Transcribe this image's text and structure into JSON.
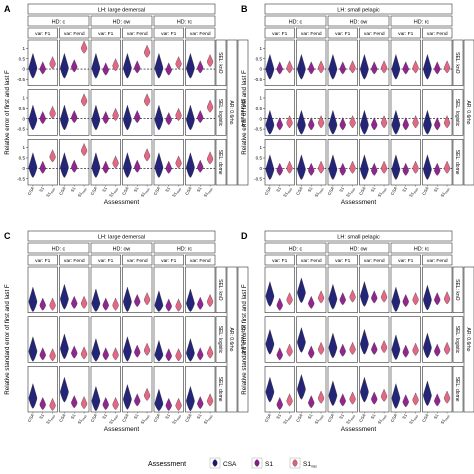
{
  "figure": {
    "legend": {
      "title": "Assessment",
      "items": [
        {
          "label": "CSA",
          "color": "#191970"
        },
        {
          "label": "S1",
          "sub": "",
          "color": "#8B1A89"
        },
        {
          "label": "S1",
          "sub": "mss",
          "color": "#E0607E"
        }
      ]
    },
    "assessment_ticks": [
      {
        "label": "CSA",
        "sub": ""
      },
      {
        "label": "S1",
        "sub": ""
      },
      {
        "label": "S1",
        "sub": "mss"
      }
    ]
  },
  "chart_data": [
    {
      "panel_letter": "A",
      "type": "violin",
      "lh_label": "LH: large demersal",
      "hd_labels": [
        "HD: c",
        "HD: ow",
        "HD: rc"
      ],
      "var_labels": [
        "var: F1",
        "var: Fend"
      ],
      "sel_labels": [
        "SEL: knO",
        "SEL: logistic",
        "SEL: dome"
      ],
      "sr_label": "SR: recruit-4",
      "ar_label": "AR: 0.6rho",
      "ylabel": "Relative error of first and last F",
      "xlabel": "Assessment",
      "ylim": [
        -0.8,
        1.4
      ],
      "yticks": [
        "-0.5",
        "0",
        "0.5",
        "1"
      ],
      "ytick_values": [
        -0.5,
        0,
        0.5,
        1
      ],
      "ref_line": 0,
      "values": [
        [
          [
            0.05,
            0.0,
            0.25
          ],
          [
            0.05,
            0.1,
            1.0
          ],
          [
            0.05,
            -0.05,
            0.15
          ],
          [
            0.05,
            0.05,
            0.8
          ],
          [
            0.05,
            -0.05,
            0.25
          ],
          [
            0.05,
            0.05,
            0.35
          ]
        ],
        [
          [
            -0.05,
            0.0,
            0.25
          ],
          [
            -0.05,
            0.05,
            0.85
          ],
          [
            -0.05,
            0.0,
            0.15
          ],
          [
            -0.05,
            0.05,
            0.85
          ],
          [
            -0.05,
            -0.05,
            0.15
          ],
          [
            -0.05,
            0.05,
            0.55
          ]
        ],
        [
          [
            0.05,
            0.0,
            0.55
          ],
          [
            0.05,
            0.05,
            0.85
          ],
          [
            0.05,
            0.0,
            0.25
          ],
          [
            0.05,
            0.05,
            0.6
          ],
          [
            0.05,
            0.0,
            0.25
          ],
          [
            0.05,
            0.05,
            0.45
          ]
        ]
      ]
    },
    {
      "panel_letter": "B",
      "type": "violin",
      "lh_label": "LH: small pelagic",
      "hd_labels": [
        "HD: c",
        "HD: ow",
        "HD: rc"
      ],
      "var_labels": [
        "var: F1",
        "var: Fend"
      ],
      "sel_labels": [
        "SEL: knO",
        "SEL: logistic",
        "SEL: dome"
      ],
      "sr_label": "SR: recruit-4",
      "ar_label": "AR: 0.6rho",
      "ylabel": "Relative error of first and last F",
      "xlabel": "Assessment",
      "ylim": [
        -0.8,
        1.4
      ],
      "yticks": [
        "-0.5",
        "0",
        "0.5",
        "1"
      ],
      "ytick_values": [
        -0.5,
        0,
        0.5,
        1
      ],
      "ref_line": 0,
      "values": [
        [
          [
            0.0,
            0.0,
            0.05
          ],
          [
            0.0,
            0.0,
            0.05
          ],
          [
            0.0,
            0.0,
            0.05
          ],
          [
            0.0,
            0.0,
            0.05
          ],
          [
            0.0,
            0.0,
            0.05
          ],
          [
            0.0,
            0.0,
            0.05
          ]
        ],
        [
          [
            -0.3,
            -0.3,
            -0.2
          ],
          [
            -0.3,
            -0.3,
            -0.2
          ],
          [
            -0.3,
            -0.3,
            -0.2
          ],
          [
            -0.3,
            -0.3,
            -0.2
          ],
          [
            -0.3,
            -0.3,
            -0.2
          ],
          [
            -0.3,
            -0.3,
            -0.2
          ]
        ],
        [
          [
            -0.05,
            -0.1,
            0.0
          ],
          [
            -0.05,
            -0.1,
            0.0
          ],
          [
            -0.05,
            -0.1,
            0.0
          ],
          [
            -0.05,
            -0.1,
            0.0
          ],
          [
            -0.05,
            -0.1,
            0.0
          ],
          [
            -0.05,
            -0.1,
            0.0
          ]
        ]
      ]
    },
    {
      "panel_letter": "C",
      "type": "violin",
      "lh_label": "LH: large demersal",
      "hd_labels": [
        "HD: c",
        "HD: ow",
        "HD: rc"
      ],
      "var_labels": [
        "var: F1",
        "var: Fend"
      ],
      "sel_labels": [
        "SEL: knO",
        "SEL: logistic",
        "SEL: dome"
      ],
      "sr_label": "SR: recruit-4",
      "ar_label": "AR: 0.6rho",
      "ylabel": "Relative standard error of first and last F",
      "xlabel": "Assessment",
      "ylim": [
        0,
        0.5
      ],
      "yticks": [],
      "ytick_values": [],
      "ref_line": null,
      "values": [
        [
          [
            0.12,
            0.08,
            0.08
          ],
          [
            0.15,
            0.1,
            0.1
          ],
          [
            0.1,
            0.08,
            0.08
          ],
          [
            0.12,
            0.12,
            0.14
          ],
          [
            0.08,
            0.07,
            0.07
          ],
          [
            0.1,
            0.09,
            0.12
          ]
        ],
        [
          [
            0.12,
            0.08,
            0.07
          ],
          [
            0.15,
            0.1,
            0.09
          ],
          [
            0.1,
            0.08,
            0.08
          ],
          [
            0.12,
            0.11,
            0.13
          ],
          [
            0.08,
            0.07,
            0.07
          ],
          [
            0.1,
            0.08,
            0.1
          ]
        ],
        [
          [
            0.15,
            0.08,
            0.07
          ],
          [
            0.22,
            0.1,
            0.09
          ],
          [
            0.12,
            0.08,
            0.08
          ],
          [
            0.14,
            0.12,
            0.18
          ],
          [
            0.09,
            0.07,
            0.07
          ],
          [
            0.12,
            0.09,
            0.12
          ]
        ]
      ]
    },
    {
      "panel_letter": "D",
      "type": "violin",
      "lh_label": "LH: small pelagic",
      "hd_labels": [
        "HD: c",
        "HD: ow",
        "HD: rc"
      ],
      "var_labels": [
        "var: F1",
        "var: Fend"
      ],
      "sel_labels": [
        "SEL: knO",
        "SEL: logistic",
        "SEL: dome"
      ],
      "sr_label": "SR: recruit-4",
      "ar_label": "AR: 0.6rho",
      "ylabel": "Relative standard error of first and last F",
      "xlabel": "Assessment",
      "ylim": [
        0,
        0.5
      ],
      "yticks": [],
      "ytick_values": [],
      "ref_line": null,
      "values": [
        [
          [
            0.18,
            0.08,
            0.14
          ],
          [
            0.22,
            0.1,
            0.16
          ],
          [
            0.15,
            0.14,
            0.17
          ],
          [
            0.18,
            0.16,
            0.17
          ],
          [
            0.12,
            0.12,
            0.14
          ],
          [
            0.14,
            0.14,
            0.15
          ]
        ],
        [
          [
            0.2,
            0.08,
            0.12
          ],
          [
            0.22,
            0.1,
            0.14
          ],
          [
            0.16,
            0.12,
            0.14
          ],
          [
            0.2,
            0.14,
            0.16
          ],
          [
            0.14,
            0.11,
            0.13
          ],
          [
            0.16,
            0.12,
            0.14
          ]
        ],
        [
          [
            0.22,
            0.08,
            0.12
          ],
          [
            0.25,
            0.1,
            0.15
          ],
          [
            0.18,
            0.12,
            0.14
          ],
          [
            0.22,
            0.14,
            0.17
          ],
          [
            0.15,
            0.11,
            0.13
          ],
          [
            0.18,
            0.12,
            0.15
          ]
        ]
      ]
    }
  ]
}
